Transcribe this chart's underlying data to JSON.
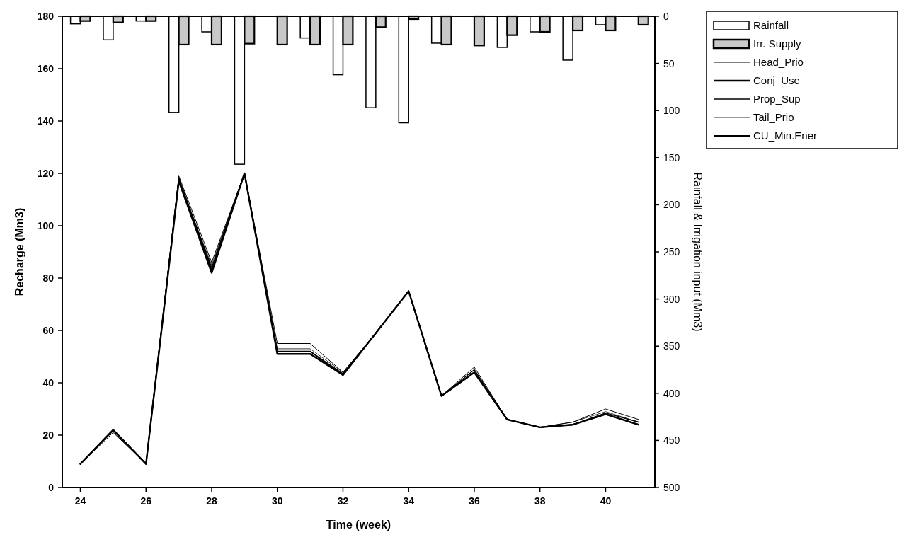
{
  "chart_data": {
    "type": "line",
    "xlabel": "Time (week)",
    "ylabel": "Recharge (Mm3)",
    "y2label": "Rainfall & Irrigation input (Mm3)",
    "x": [
      24,
      25,
      26,
      27,
      28,
      29,
      30,
      31,
      32,
      33,
      34,
      35,
      36,
      37,
      38,
      39,
      40,
      41
    ],
    "xlim": [
      23.45,
      41.5
    ],
    "xticks": [
      24,
      26,
      28,
      30,
      32,
      34,
      36,
      38,
      40
    ],
    "ylim": [
      0,
      180
    ],
    "yticks": [
      0,
      20,
      40,
      60,
      80,
      100,
      120,
      140,
      160,
      180
    ],
    "y2lim": [
      500,
      0
    ],
    "y2ticks": [
      0,
      50,
      100,
      150,
      200,
      250,
      300,
      350,
      400,
      450,
      500
    ],
    "legend": "right",
    "grid": false,
    "marker": "none",
    "line_style": "solid",
    "series": [
      {
        "name": "Rainfall",
        "type": "bar",
        "axis": "y2",
        "color": "#ffffff",
        "values": [
          8,
          25,
          5,
          102,
          16.5,
          157,
          0,
          23,
          62,
          97,
          113,
          28.5,
          0,
          33,
          16.5,
          46.5,
          9,
          0
        ]
      },
      {
        "name": "Irr. Supply",
        "type": "bar",
        "axis": "y2",
        "color": "#c8c8c8",
        "values": [
          5,
          6.5,
          5,
          30,
          30,
          29,
          30,
          30,
          30,
          11.5,
          3,
          30,
          31,
          20,
          16.5,
          15,
          15,
          9
        ]
      },
      {
        "name": "Head_Prio",
        "color": "#000000",
        "values": [
          9,
          21,
          9,
          119,
          86,
          120,
          55,
          55,
          44,
          59,
          75,
          35,
          46,
          26,
          23,
          25,
          30,
          26
        ]
      },
      {
        "name": "Conj_Use",
        "color": "#000000",
        "values": [
          9,
          22,
          9,
          117,
          82,
          120,
          51,
          51,
          43,
          59,
          75,
          35,
          44,
          26,
          23,
          24,
          28,
          24
        ]
      },
      {
        "name": "Prop_Sup",
        "color": "#000000",
        "values": [
          9,
          22,
          9,
          118,
          84,
          120,
          52,
          52,
          43.5,
          59,
          75,
          35,
          45,
          26,
          23,
          24,
          28.5,
          25
        ]
      },
      {
        "name": "Tail_Prio",
        "color": "#000000",
        "values": [
          9,
          21.5,
          9,
          117,
          85,
          120,
          53,
          53,
          44,
          59,
          75,
          35,
          45,
          26,
          23,
          25,
          29,
          25
        ]
      },
      {
        "name": "CU_Min.Ener",
        "color": "#000000",
        "values": [
          9,
          22,
          9,
          118,
          83,
          120,
          52,
          52,
          43,
          59,
          75,
          35,
          44,
          26,
          23,
          24,
          28,
          24
        ]
      }
    ]
  }
}
